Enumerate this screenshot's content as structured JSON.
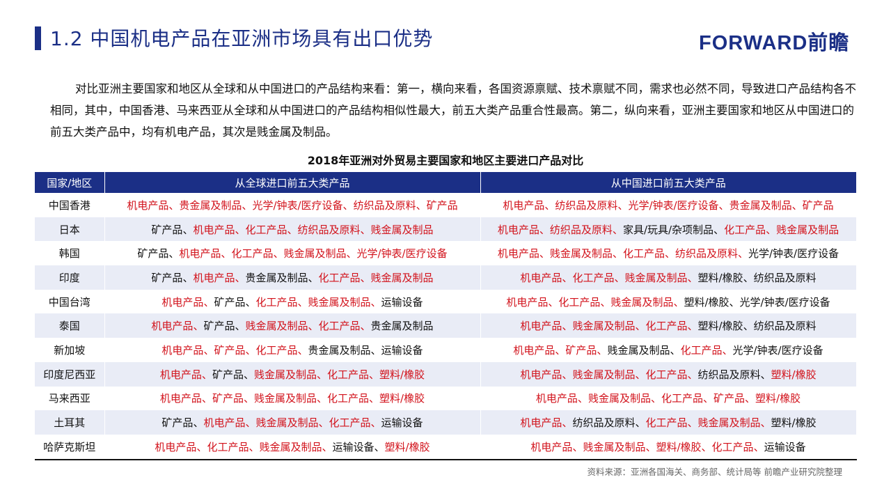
{
  "header": {
    "title": "1.2 中国机电产品在亚洲市场具有出口优势",
    "logo": "FORWARD前瞻",
    "brand_color": "#1b2f86"
  },
  "intro": "对比亚洲主要国家和地区从全球和从中国进口的产品结构来看：第一，横向来看，各国资源禀赋、技术禀赋不同，需求也必然不同，导致进口产品结构各不相同，其中，中国香港、马来西亚从全球和从中国进口的产品结构相似性最大，前五大类产品重合性最高。第二，纵向来看，亚洲主要国家和地区从中国进口的前五大类产品中，均有机电产品，其次是贱金属及制品。",
  "table": {
    "title": "2018年亚洲对外贸易主要国家和地区主要进口产品对比",
    "highlight_color": "#d2121b",
    "headers": [
      "国家/地区",
      "从全球进口前五大类产品",
      "从中国进口前五大类产品"
    ],
    "rows": [
      {
        "country": "中国香港",
        "global": [
          [
            "机电产品",
            1
          ],
          [
            "贵金属及制品",
            1
          ],
          [
            "光学/钟表/医疗设备",
            1
          ],
          [
            "纺织品及原料",
            1
          ],
          [
            "矿产品",
            1
          ]
        ],
        "china": [
          [
            "机电产品",
            1
          ],
          [
            "纺织品及原料",
            1
          ],
          [
            "光学/钟表/医疗设备",
            1
          ],
          [
            "贵金属及制品",
            1
          ],
          [
            "矿产品",
            1
          ]
        ]
      },
      {
        "country": "日本",
        "global": [
          [
            "矿产品",
            0
          ],
          [
            "机电产品",
            1
          ],
          [
            "化工产品",
            1
          ],
          [
            "纺织品及原料",
            1
          ],
          [
            "贱金属及制品",
            1
          ]
        ],
        "china": [
          [
            "机电产品",
            1
          ],
          [
            "纺织品及原料",
            1
          ],
          [
            "家具/玩具/杂项制品",
            0
          ],
          [
            "化工产品",
            1
          ],
          [
            "贱金属及制品",
            1
          ]
        ]
      },
      {
        "country": "韩国",
        "global": [
          [
            "矿产品",
            0
          ],
          [
            "机电产品",
            1
          ],
          [
            "化工产品",
            1
          ],
          [
            "贱金属及制品",
            1
          ],
          [
            "光学/钟表/医疗设备",
            1
          ]
        ],
        "china": [
          [
            "机电产品",
            1
          ],
          [
            "贱金属及制品",
            1
          ],
          [
            "化工产品",
            1
          ],
          [
            "纺织品及原料",
            1
          ],
          [
            "光学/钟表/医疗设备",
            0
          ]
        ]
      },
      {
        "country": "印度",
        "global": [
          [
            "矿产品",
            0
          ],
          [
            "机电产品",
            1
          ],
          [
            "贵金属及制品",
            0
          ],
          [
            "化工产品",
            1
          ],
          [
            "贱金属及制品",
            1
          ]
        ],
        "china": [
          [
            "机电产品",
            1
          ],
          [
            "化工产品",
            1
          ],
          [
            "贱金属及制品",
            1
          ],
          [
            "塑料/橡胶",
            0
          ],
          [
            "纺织品及原料",
            0
          ]
        ]
      },
      {
        "country": "中国台湾",
        "global": [
          [
            "机电产品",
            1
          ],
          [
            "矿产品",
            0
          ],
          [
            "化工产品",
            1
          ],
          [
            "贱金属及制品",
            1
          ],
          [
            "运输设备",
            0
          ]
        ],
        "china": [
          [
            "机电产品",
            1
          ],
          [
            "化工产品",
            1
          ],
          [
            "贱金属及制品",
            1
          ],
          [
            "塑料/橡胶",
            0
          ],
          [
            "光学/钟表/医疗设备",
            0
          ]
        ]
      },
      {
        "country": "泰国",
        "global": [
          [
            "机电产品",
            1
          ],
          [
            "矿产品",
            0
          ],
          [
            "贱金属及制品",
            1
          ],
          [
            "化工产品",
            1
          ],
          [
            "贵金属及制品",
            0
          ]
        ],
        "china": [
          [
            "机电产品",
            1
          ],
          [
            "贱金属及制品",
            1
          ],
          [
            "化工产品",
            1
          ],
          [
            "塑料/橡胶",
            0
          ],
          [
            "纺织品及原料",
            0
          ]
        ]
      },
      {
        "country": "新加坡",
        "global": [
          [
            "机电产品",
            1
          ],
          [
            "矿产品",
            1
          ],
          [
            "化工产品",
            1
          ],
          [
            "贵金属及制品",
            0
          ],
          [
            "运输设备",
            0
          ]
        ],
        "china": [
          [
            "机电产品",
            1
          ],
          [
            "矿产品",
            1
          ],
          [
            "贱金属及制品",
            0
          ],
          [
            "化工产品",
            1
          ],
          [
            "光学/钟表/医疗设备",
            0
          ]
        ]
      },
      {
        "country": "印度尼西亚",
        "global": [
          [
            "机电产品",
            1
          ],
          [
            "矿产品",
            0
          ],
          [
            "贱金属及制品",
            1
          ],
          [
            "化工产品",
            1
          ],
          [
            "塑料/橡胶",
            1
          ]
        ],
        "china": [
          [
            "机电产品",
            1
          ],
          [
            "贱金属及制品",
            1
          ],
          [
            "化工产品",
            1
          ],
          [
            "纺织品及原料",
            0
          ],
          [
            "塑料/橡胶",
            1
          ]
        ]
      },
      {
        "country": "马来西亚",
        "global": [
          [
            "机电产品",
            1
          ],
          [
            "矿产品",
            1
          ],
          [
            "贱金属及制品",
            1
          ],
          [
            "化工产品",
            1
          ],
          [
            "塑料/橡胶",
            1
          ]
        ],
        "china": [
          [
            "机电产品",
            1
          ],
          [
            "贱金属及制品",
            1
          ],
          [
            "化工产品",
            1
          ],
          [
            "矿产品",
            1
          ],
          [
            "塑料/橡胶",
            1
          ]
        ]
      },
      {
        "country": "土耳其",
        "global": [
          [
            "矿产品",
            0
          ],
          [
            "机电产品",
            1
          ],
          [
            "贱金属及制品",
            1
          ],
          [
            "化工产品",
            1
          ],
          [
            "运输设备",
            0
          ]
        ],
        "china": [
          [
            "机电产品",
            1
          ],
          [
            "纺织品及原料",
            0
          ],
          [
            "化工产品",
            1
          ],
          [
            "贱金属及制品",
            1
          ],
          [
            "塑料/橡胶",
            0
          ]
        ]
      },
      {
        "country": "哈萨克斯坦",
        "global": [
          [
            "机电产品",
            1
          ],
          [
            "化工产品",
            1
          ],
          [
            "贱金属及制品",
            1
          ],
          [
            "运输设备",
            0
          ],
          [
            "塑料/橡胶",
            1
          ]
        ],
        "china": [
          [
            "机电产品",
            1
          ],
          [
            "贱金属及制品",
            1
          ],
          [
            "塑料/橡胶",
            1
          ],
          [
            "化工产品",
            1
          ],
          [
            "运输设备",
            0
          ]
        ]
      }
    ]
  },
  "source": "资料来源：亚洲各国海关、商务部、统计局等   前瞻产业研究院整理"
}
